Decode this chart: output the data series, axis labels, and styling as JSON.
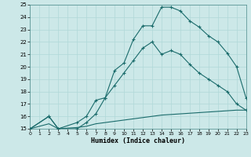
{
  "xlabel": "Humidex (Indice chaleur)",
  "background_color": "#cce8e8",
  "grid_color": "#aacccc",
  "line_color": "#1a6b6b",
  "xlim": [
    0,
    23
  ],
  "ylim": [
    15,
    25
  ],
  "xticks": [
    0,
    1,
    2,
    3,
    4,
    5,
    6,
    7,
    8,
    9,
    10,
    11,
    12,
    13,
    14,
    15,
    16,
    17,
    18,
    19,
    20,
    21,
    22,
    23
  ],
  "yticks": [
    15,
    16,
    17,
    18,
    19,
    20,
    21,
    22,
    23,
    24,
    25
  ],
  "line1_x": [
    0,
    2,
    3,
    5,
    6,
    7,
    8,
    9,
    10,
    11,
    12,
    13,
    14,
    15,
    16,
    17,
    18,
    19,
    20,
    21,
    22,
    23
  ],
  "line1_y": [
    15,
    16,
    15,
    15,
    15.5,
    16.2,
    17.5,
    19.7,
    20.3,
    22.2,
    23.3,
    23.3,
    24.8,
    24.8,
    24.5,
    23.7,
    23.2,
    22.5,
    22.0,
    21.1,
    20.0,
    17.5
  ],
  "line2_x": [
    0,
    2,
    3,
    5,
    6,
    7,
    8,
    9,
    10,
    11,
    12,
    13,
    14,
    15,
    16,
    17,
    18,
    19,
    20,
    21,
    22,
    23
  ],
  "line2_y": [
    15,
    16,
    15,
    15.5,
    16.0,
    17.3,
    17.5,
    18.5,
    19.5,
    20.5,
    21.5,
    22.0,
    21.0,
    21.3,
    21.0,
    20.2,
    19.5,
    19.0,
    18.5,
    18.0,
    17.0,
    16.5
  ],
  "line3_x": [
    0,
    2,
    3,
    5,
    6,
    7,
    8,
    9,
    10,
    11,
    12,
    13,
    14,
    15,
    16,
    17,
    18,
    19,
    20,
    21,
    22,
    23
  ],
  "line3_y": [
    15,
    15.4,
    15,
    15.1,
    15.2,
    15.4,
    15.5,
    15.6,
    15.7,
    15.8,
    15.9,
    16.0,
    16.1,
    16.15,
    16.2,
    16.25,
    16.3,
    16.35,
    16.4,
    16.45,
    16.5,
    16.5
  ]
}
